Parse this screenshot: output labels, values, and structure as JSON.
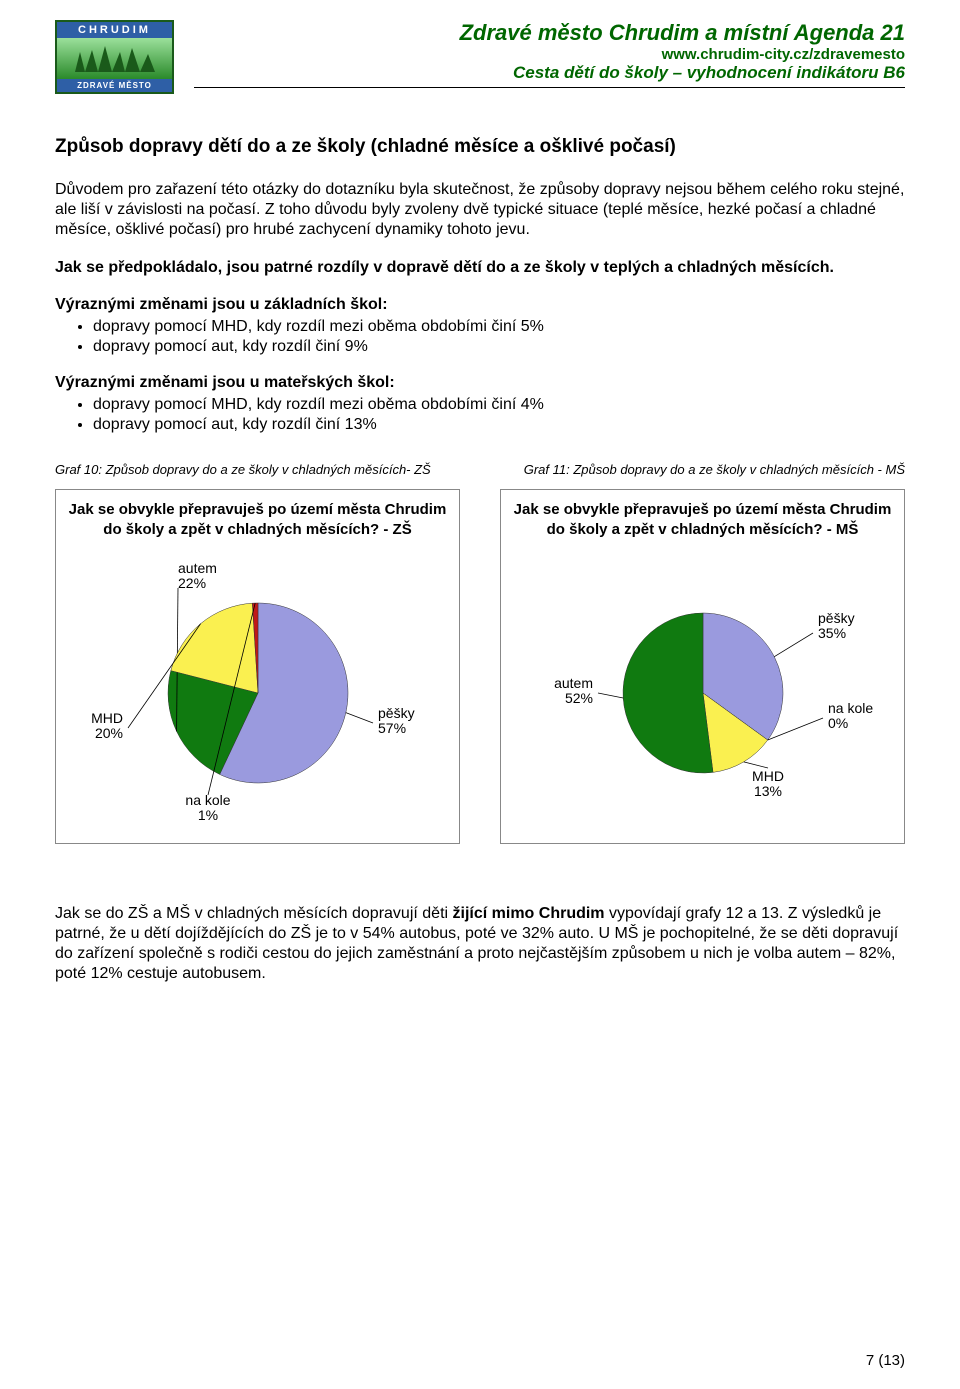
{
  "header": {
    "logo_top": "CHRUDIM",
    "logo_banner": "ZDRAVÉ MĚSTO",
    "title": "Zdravé město Chrudim a místní Agenda 21",
    "url": "www.chrudim-city.cz/zdravemesto",
    "subtitle": "Cesta dětí do školy – vyhodnocení indikátoru B6",
    "title_color": "#006600"
  },
  "section_title": "Způsob dopravy dětí do a ze školy (chladné měsíce a ošklivé počasí)",
  "para1": "Důvodem pro zařazení této otázky do dotazníku byla skutečnost, že způsoby dopravy nejsou během celého roku stejné, ale liší v závislosti na počasí. Z toho důvodu byly zvoleny dvě typické situace (teplé měsíce, hezké počasí a chladné měsíce, ošklivé počasí) pro hrubé zachycení dynamiky tohoto jevu.",
  "para2": "Jak se předpokládalo, jsou patrné rozdíly v dopravě dětí do a ze školy v teplých a chladných měsících.",
  "group1_head": "Výraznými změnami jsou u základních škol:",
  "group1_items": [
    "dopravy pomocí MHD, kdy rozdíl mezi oběma obdobími činí 5%",
    "dopravy pomocí aut, kdy rozdíl činí 9%"
  ],
  "group2_head": "Výraznými změnami jsou u mateřských škol:",
  "group2_items": [
    "dopravy pomocí MHD, kdy rozdíl mezi oběma obdobími činí 4%",
    "dopravy pomocí aut, kdy rozdíl činí 13%"
  ],
  "caption_left": "Graf 10: Způsob dopravy do a ze školy v chladných  měsících- ZŠ",
  "caption_right": "Graf 11: Způsob dopravy do a ze školy v chladných měsících - MŠ",
  "chart_left": {
    "title": "Jak se obvykle přepravuješ po území města Chrudim do školy a zpět v chladných měsících? - ZŠ",
    "type": "pie",
    "slices": [
      {
        "label": "pěšky",
        "pct": 57,
        "color": "#9a9ade"
      },
      {
        "label": "autem",
        "pct": 22,
        "color": "#107a10"
      },
      {
        "label": "MHD",
        "pct": 20,
        "color": "#faf050"
      },
      {
        "label": "na kole",
        "pct": 1,
        "color": "#c01818"
      }
    ],
    "label_fontsize": 14,
    "title_fontsize": 15,
    "radius": 90
  },
  "chart_right": {
    "title": "Jak se obvykle přepravuješ po území města Chrudim do školy a zpět v chladných měsících? - MŠ",
    "type": "pie",
    "slices": [
      {
        "label": "pěšky",
        "pct": 35,
        "color": "#9a9ade"
      },
      {
        "label": "na kole",
        "pct": 0,
        "color": "#c01818"
      },
      {
        "label": "MHD",
        "pct": 13,
        "color": "#faf050"
      },
      {
        "label": "autem",
        "pct": 52,
        "color": "#107a10"
      }
    ],
    "label_fontsize": 14,
    "title_fontsize": 15,
    "radius": 80
  },
  "note": "Jak se do ZŠ a MŠ v chladných měsících dopravují děti žijící mimo Chrudim vypovídají grafy 12 a 13. Z výsledků je patrné, že u dětí dojíždějících do ZŠ je to v  54% autobus, poté ve 32% auto. U MŠ je pochopitelné, že se děti dopravují do zařízení společně s rodiči cestou do jejich zaměstnání a proto nejčastějším způsobem u nich je volba autem – 82%, poté 12% cestuje autobusem.",
  "footer": "7 (13)"
}
